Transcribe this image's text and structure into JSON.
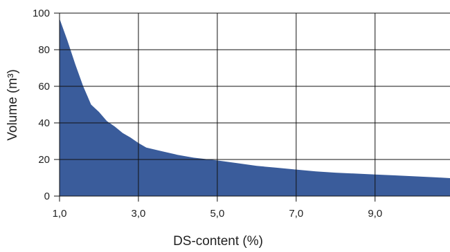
{
  "colors": {
    "area_fill": "#3a5c9b",
    "grid": "#111111",
    "background": "#ffffff"
  },
  "chart_data": {
    "type": "area",
    "title": "",
    "xlabel": "DS-content (%)",
    "ylabel": "Volume (m³)",
    "xlim": [
      1.0,
      10.9
    ],
    "ylim": [
      0,
      100
    ],
    "x_ticks": [
      1.0,
      3.0,
      5.0,
      7.0,
      9.0
    ],
    "x_tick_labels": [
      "1,0",
      "3,0",
      "5,0",
      "7,0",
      "9,0"
    ],
    "y_ticks": [
      0,
      20,
      40,
      60,
      80,
      100
    ],
    "y_tick_labels": [
      "0",
      "20",
      "40",
      "60",
      "80",
      "100"
    ],
    "grid": true,
    "series": [
      {
        "x": [
          1.0,
          1.2,
          1.4,
          1.6,
          1.8,
          2.0,
          2.2,
          2.4,
          2.6,
          2.8,
          3.0,
          3.2,
          3.6,
          4.0,
          4.4,
          4.8,
          5.0,
          5.5,
          6.0,
          6.5,
          7.0,
          7.5,
          8.0,
          8.5,
          9.0,
          9.5,
          10.0,
          10.5,
          10.9
        ],
        "y": [
          97,
          85,
          72,
          60,
          50,
          46,
          41,
          38,
          34.5,
          32,
          29,
          26.5,
          24.5,
          22.5,
          21,
          20,
          19.5,
          18,
          16.5,
          15.5,
          14.5,
          13.5,
          12.8,
          12.3,
          11.8,
          11.3,
          10.8,
          10.3,
          9.8
        ]
      }
    ]
  }
}
